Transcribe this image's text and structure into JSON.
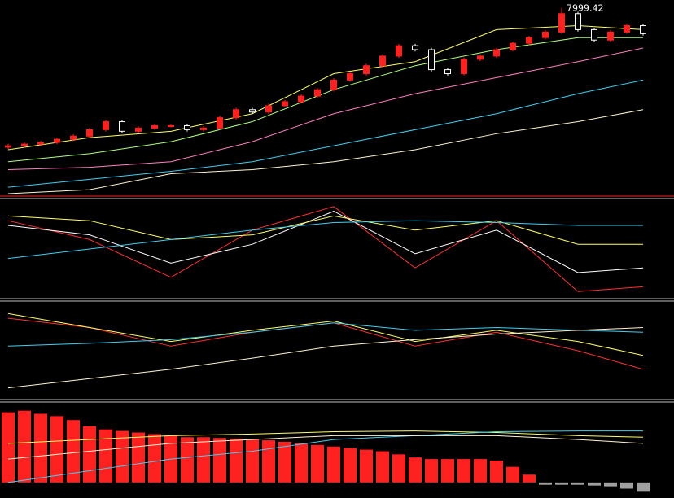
{
  "chart_data": [
    {
      "type": "candlestick",
      "open": [
        5750,
        5774,
        5800,
        5826,
        5878,
        5929,
        6033,
        6162,
        6007,
        6059,
        6097,
        6097,
        6033,
        6059,
        6227,
        6356,
        6317,
        6420,
        6485,
        6575,
        6679,
        6834,
        6937,
        7066,
        7221,
        7389,
        7325,
        7002,
        6937,
        7170,
        7221,
        7325,
        7428,
        7519,
        7609,
        7906,
        7648,
        7480,
        7609,
        7712
      ],
      "high": [
        5804,
        5830,
        5856,
        5908,
        5959,
        6063,
        6192,
        6192,
        6089,
        6127,
        6127,
        6127,
        6089,
        6257,
        6386,
        6386,
        6450,
        6515,
        6605,
        6709,
        6864,
        6967,
        7096,
        7251,
        7419,
        7419,
        7355,
        7032,
        7200,
        7251,
        7355,
        7458,
        7549,
        7639,
        7999.42,
        7936,
        7678,
        7639,
        7742,
        7742
      ],
      "low": [
        5720,
        5744,
        5770,
        5796,
        5848,
        5899,
        6003,
        5977,
        5977,
        6029,
        6067,
        6003,
        6003,
        6029,
        6197,
        6287,
        6287,
        6390,
        6455,
        6545,
        6649,
        6804,
        6907,
        7036,
        7191,
        7295,
        6972,
        6907,
        6907,
        7140,
        7191,
        7295,
        7398,
        7489,
        7579,
        7618,
        7450,
        7450,
        7579,
        7553
      ],
      "close": [
        5774,
        5800,
        5826,
        5878,
        5929,
        6033,
        6162,
        6007,
        6059,
        6097,
        6097,
        6033,
        6059,
        6227,
        6356,
        6317,
        6420,
        6485,
        6575,
        6679,
        6834,
        6937,
        7066,
        7221,
        7389,
        7325,
        7002,
        6937,
        7170,
        7221,
        7325,
        7428,
        7519,
        7609,
        7906,
        7648,
        7480,
        7609,
        7712,
        7583
      ],
      "up_color": "#ff2020",
      "down_color": "#ffffff",
      "series": [
        {
          "color": "#ffff66",
          "x": [
            0,
            5,
            10,
            15,
            20,
            25,
            30,
            35,
            39
          ],
          "values": [
            5710,
            5904,
            6007,
            6291,
            6937,
            7131,
            7648,
            7712,
            7648
          ]
        },
        {
          "color": "#b0ff80",
          "x": [
            0,
            5,
            10,
            15,
            20,
            25,
            30,
            35,
            39
          ],
          "values": [
            5516,
            5645,
            5839,
            6162,
            6679,
            7066,
            7325,
            7519,
            7519
          ]
        },
        {
          "color": "#ff80c0",
          "x": [
            0,
            5,
            10,
            15,
            20,
            25,
            30,
            35,
            39
          ],
          "values": [
            5387,
            5426,
            5516,
            5839,
            6291,
            6614,
            6873,
            7131,
            7351
          ]
        },
        {
          "color": "#40d0f0",
          "x": [
            0,
            5,
            10,
            15,
            20,
            25,
            30,
            35,
            39
          ],
          "values": [
            5103,
            5232,
            5361,
            5516,
            5774,
            6033,
            6291,
            6614,
            6834
          ]
        },
        {
          "color": "#fff4d0",
          "x": [
            0,
            5,
            10,
            15,
            20,
            25,
            30,
            35,
            39
          ],
          "values": [
            5000,
            5064,
            5322,
            5387,
            5516,
            5710,
            5968,
            6162,
            6356
          ]
        }
      ],
      "ylim": [
        5000,
        8100
      ]
    },
    {
      "type": "line",
      "ylim": [
        0,
        100
      ],
      "series": [
        {
          "color": "#ff3030",
          "x": [
            0,
            5,
            10,
            15,
            20,
            25,
            30,
            35,
            39
          ],
          "values": [
            80,
            60,
            20,
            70,
            95,
            30,
            80,
            5,
            10
          ]
        },
        {
          "color": "#ffffff",
          "x": [
            0,
            5,
            10,
            15,
            20,
            25,
            30,
            35,
            39
          ],
          "values": [
            75,
            65,
            35,
            55,
            90,
            45,
            70,
            25,
            30
          ]
        },
        {
          "color": "#ffff66",
          "x": [
            0,
            5,
            10,
            15,
            20,
            25,
            30,
            35,
            39
          ],
          "values": [
            85,
            80,
            60,
            65,
            85,
            70,
            80,
            55,
            55
          ]
        },
        {
          "color": "#40d0f0",
          "x": [
            0,
            5,
            10,
            15,
            20,
            25,
            30,
            35,
            39
          ],
          "values": [
            40,
            50,
            60,
            70,
            78,
            80,
            78,
            75,
            75
          ]
        }
      ]
    },
    {
      "type": "line",
      "ylim": [
        0,
        100
      ],
      "series": [
        {
          "color": "#ff3030",
          "x": [
            0,
            5,
            10,
            15,
            20,
            25,
            30,
            35,
            39
          ],
          "values": [
            85,
            75,
            55,
            70,
            80,
            55,
            70,
            50,
            30
          ]
        },
        {
          "color": "#ffff66",
          "x": [
            0,
            5,
            10,
            15,
            20,
            25,
            30,
            35,
            39
          ],
          "values": [
            90,
            75,
            60,
            72,
            82,
            60,
            72,
            60,
            45
          ]
        },
        {
          "color": "#40d0f0",
          "x": [
            0,
            5,
            10,
            15,
            20,
            25,
            30,
            35,
            39
          ],
          "values": [
            55,
            58,
            62,
            70,
            80,
            72,
            75,
            72,
            70
          ]
        },
        {
          "color": "#fff4d0",
          "x": [
            0,
            5,
            10,
            15,
            20,
            25,
            30,
            35,
            39
          ],
          "values": [
            10,
            20,
            30,
            42,
            55,
            62,
            68,
            72,
            75
          ]
        }
      ]
    },
    {
      "type": "bar",
      "ylim": [
        -20,
        100
      ],
      "color": "#ff2020",
      "negative_color": "#a0a0a0",
      "values": [
        90,
        92,
        88,
        85,
        80,
        72,
        68,
        66,
        64,
        62,
        60,
        58,
        58,
        57,
        56,
        55,
        54,
        52,
        50,
        48,
        46,
        44,
        42,
        40,
        36,
        32,
        30,
        30,
        30,
        30,
        28,
        20,
        10,
        -3,
        -3,
        -3,
        -4,
        -5,
        -8,
        -12
      ],
      "series": [
        {
          "color": "#ffff66",
          "x": [
            0,
            5,
            10,
            15,
            20,
            25,
            30,
            35,
            39
          ],
          "values": [
            50,
            55,
            60,
            62,
            65,
            66,
            64,
            60,
            58
          ]
        },
        {
          "color": "#40d0f0",
          "x": [
            0,
            5,
            10,
            15,
            20,
            25,
            30,
            35,
            39
          ],
          "values": [
            0,
            15,
            30,
            40,
            55,
            60,
            65,
            66,
            66
          ]
        },
        {
          "color": "#fff4d0",
          "x": [
            0,
            5,
            10,
            15,
            20,
            25,
            30,
            35,
            39
          ],
          "values": [
            30,
            40,
            50,
            55,
            60,
            60,
            60,
            55,
            50
          ]
        }
      ]
    }
  ]
}
